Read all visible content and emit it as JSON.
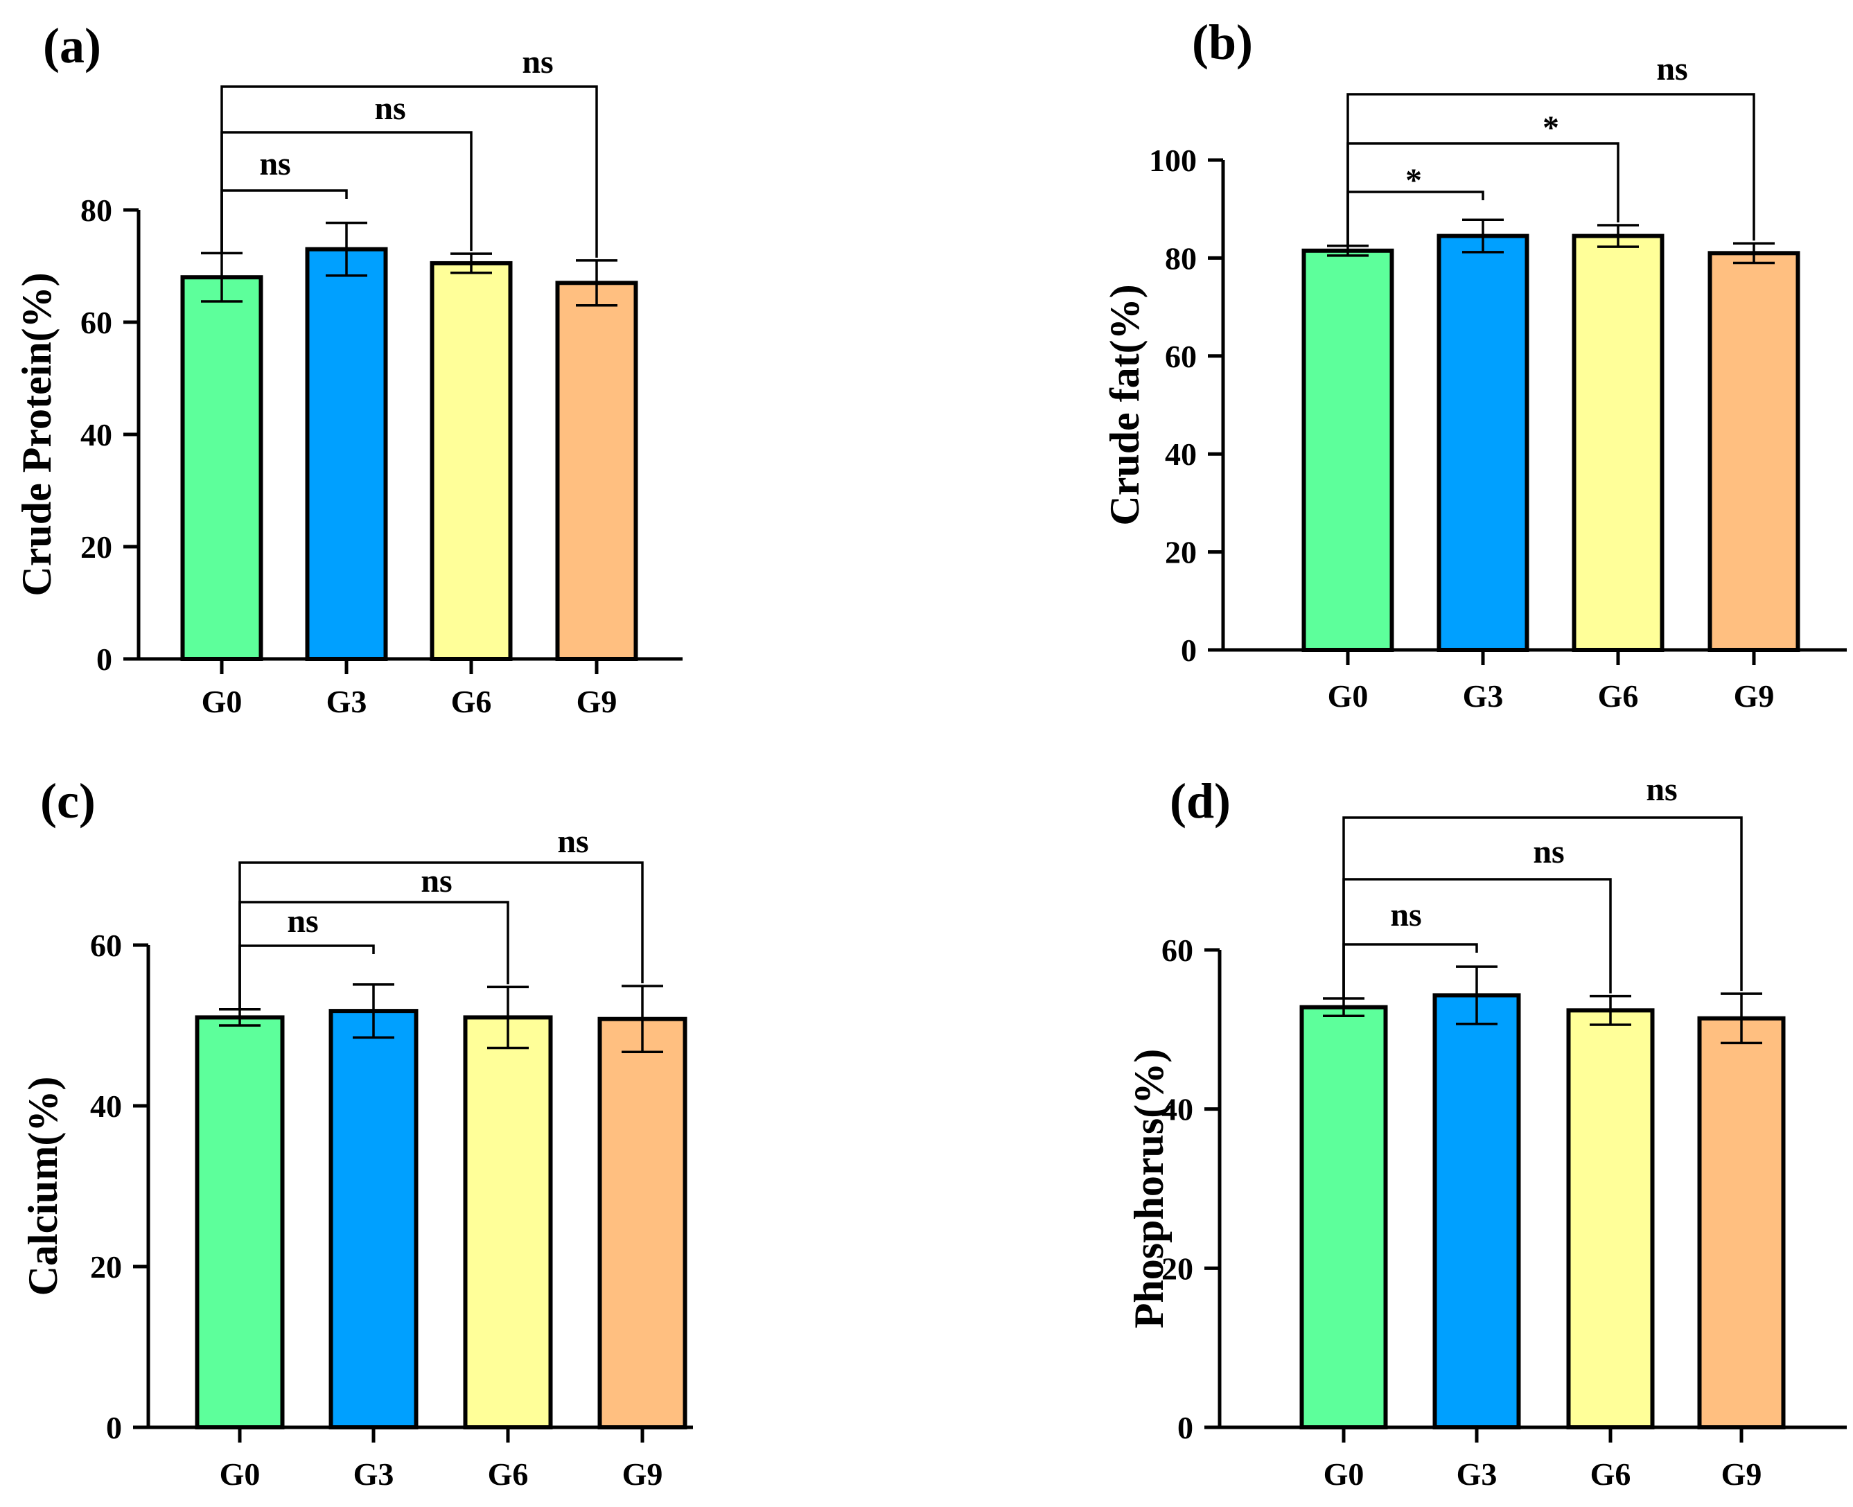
{
  "figure": {
    "colors": {
      "G0": "#5dff9b",
      "G3": "#00a0ff",
      "G6": "#ffff99",
      "G9": "#ffbf80",
      "axis": "#000000"
    }
  },
  "chart_data": [
    {
      "panel_label": "(a)",
      "type": "bar",
      "categories": [
        "G0",
        "G3",
        "G6",
        "G9"
      ],
      "values": [
        68,
        73,
        70.5,
        67
      ],
      "errors": [
        4.3,
        4.7,
        1.7,
        4
      ],
      "ylabel": "Crude Protein(%)",
      "xlabel": "",
      "ylim": [
        0,
        80
      ],
      "yticks": [
        0,
        20,
        40,
        60,
        80
      ],
      "significance": [
        {
          "from": "G0",
          "to": "G3",
          "label": "ns"
        },
        {
          "from": "G0",
          "to": "G6",
          "label": "ns"
        },
        {
          "from": "G0",
          "to": "G9",
          "label": "ns"
        }
      ]
    },
    {
      "panel_label": "(b)",
      "type": "bar",
      "categories": [
        "G0",
        "G3",
        "G6",
        "G9"
      ],
      "values": [
        81.5,
        84.5,
        84.5,
        81
      ],
      "errors": [
        1,
        3.3,
        2.2,
        2
      ],
      "ylabel": "Crude fat(%)",
      "xlabel": "",
      "ylim": [
        0,
        100
      ],
      "yticks": [
        0,
        20,
        40,
        60,
        80,
        100
      ],
      "significance": [
        {
          "from": "G0",
          "to": "G3",
          "label": "*"
        },
        {
          "from": "G0",
          "to": "G6",
          "label": "*"
        },
        {
          "from": "G0",
          "to": "G9",
          "label": "ns"
        }
      ]
    },
    {
      "panel_label": "(c)",
      "type": "bar",
      "categories": [
        "G0",
        "G3",
        "G6",
        "G9"
      ],
      "values": [
        51,
        51.8,
        51,
        50.8
      ],
      "errors": [
        1,
        3.3,
        3.8,
        4.1
      ],
      "ylabel": "Calcium(%)",
      "xlabel": "",
      "ylim": [
        0,
        60
      ],
      "yticks": [
        0,
        20,
        40,
        60
      ],
      "significance": [
        {
          "from": "G0",
          "to": "G3",
          "label": "ns"
        },
        {
          "from": "G0",
          "to": "G6",
          "label": "ns"
        },
        {
          "from": "G0",
          "to": "G9",
          "label": "ns"
        }
      ]
    },
    {
      "panel_label": "(d)",
      "type": "bar",
      "categories": [
        "G0",
        "G3",
        "G6",
        "G9"
      ],
      "values": [
        52.8,
        54.3,
        52.4,
        51.4
      ],
      "errors": [
        1.1,
        3.6,
        1.8,
        3.1
      ],
      "ylabel": "Phosphorus(%)",
      "xlabel": "",
      "ylim": [
        0,
        60
      ],
      "yticks": [
        0,
        20,
        40,
        60
      ],
      "significance": [
        {
          "from": "G0",
          "to": "G3",
          "label": "ns"
        },
        {
          "from": "G0",
          "to": "G6",
          "label": "ns"
        },
        {
          "from": "G0",
          "to": "G9",
          "label": "ns"
        }
      ]
    }
  ]
}
